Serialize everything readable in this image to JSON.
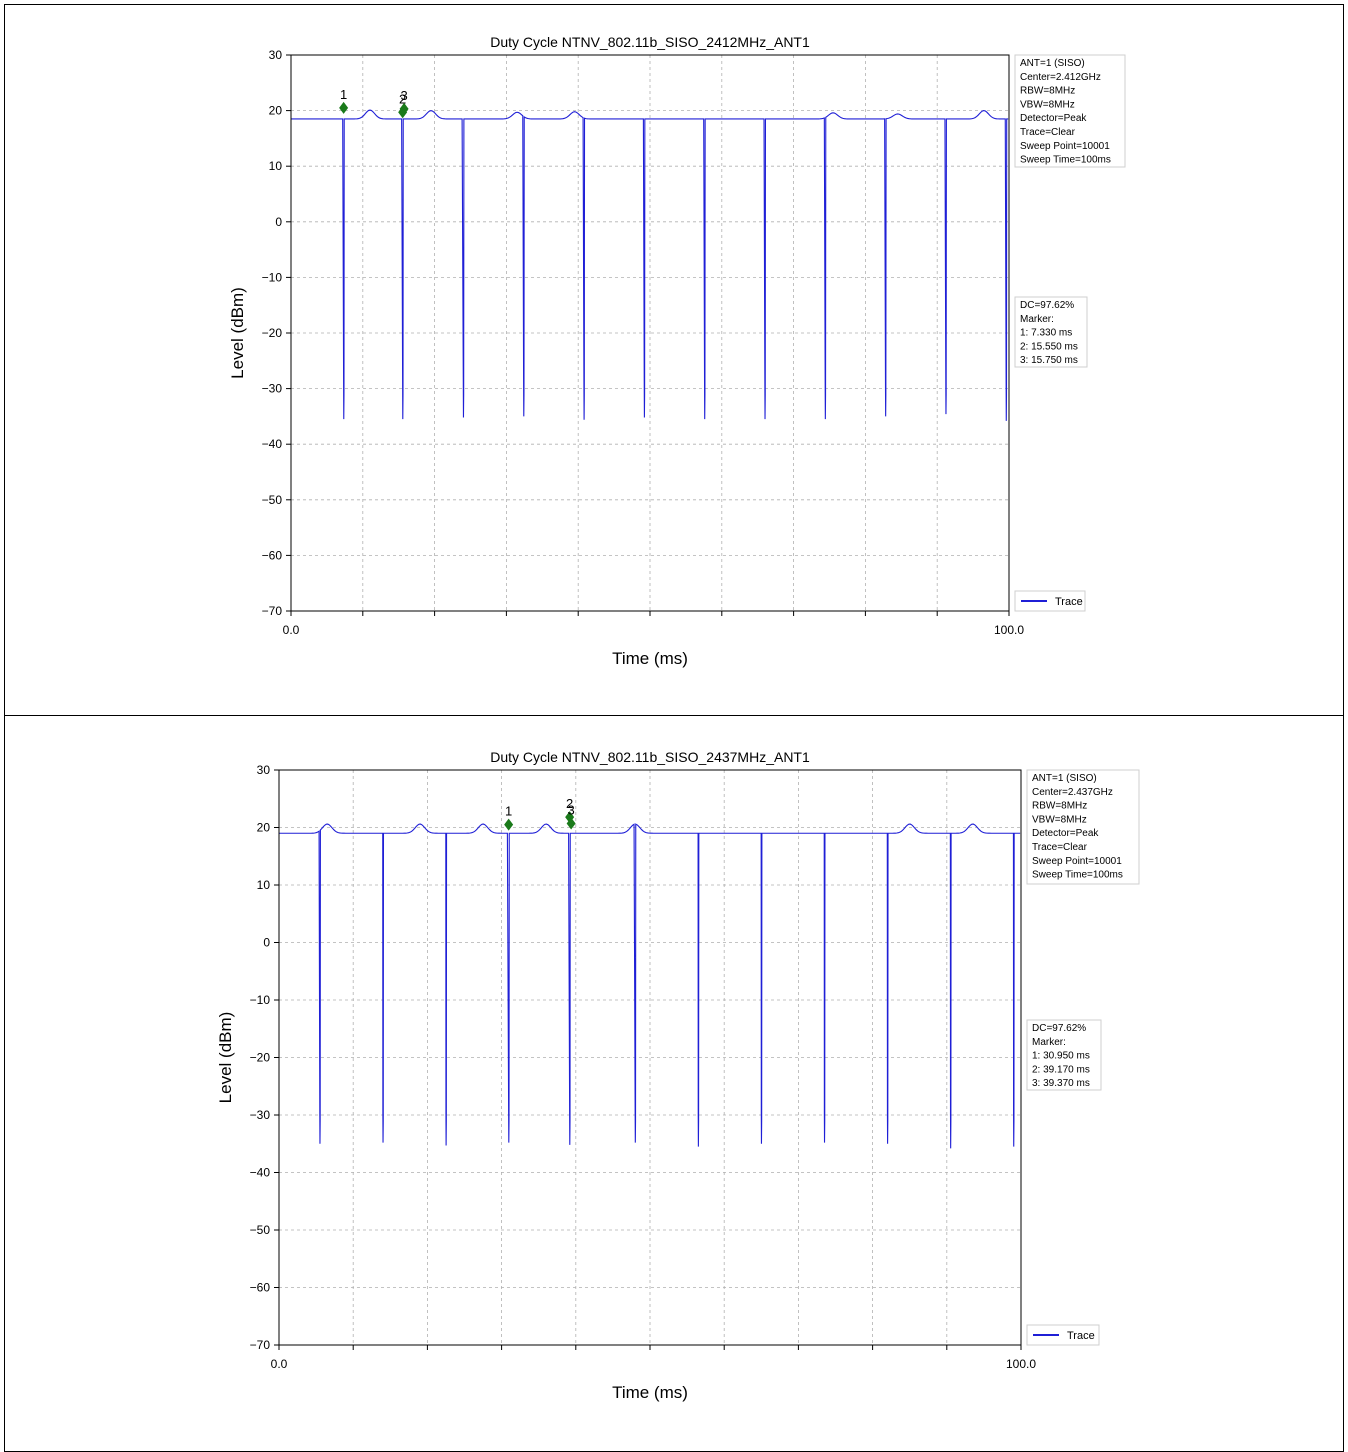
{
  "colors": {
    "trace": "#1f1fd6",
    "marker": "#1a7a1a",
    "grid": "#b0b0b0"
  },
  "chart_data": [
    {
      "type": "line",
      "title": "Duty Cycle NTNV_802.11b_SISO_2412MHz_ANT1",
      "xlabel": "Time (ms)",
      "ylabel": "Level (dBm)",
      "xlim": [
        0.0,
        100.0
      ],
      "ylim": [
        -70,
        30
      ],
      "x_tick_labels": [
        "0.0",
        "100.0"
      ],
      "y_ticks": [
        "30",
        "20",
        "10",
        "0",
        "−10",
        "−20",
        "−30",
        "−40",
        "−50",
        "−60",
        "−70"
      ],
      "grid": true,
      "info_box": [
        "ANT=1 (SISO)",
        "Center=2.412GHz",
        "RBW=8MHz",
        "VBW=8MHz",
        "Detector=Peak",
        "Trace=Clear",
        "Sweep Point=10001",
        "Sweep Time=100ms"
      ],
      "dc_box": [
        "DC=97.62%",
        "Marker:",
        "1: 7.330 ms",
        "2: 15.550 ms",
        "3: 15.750 ms"
      ],
      "legend": "Trace",
      "legend_position": "bottom-right",
      "base_level": 18.5,
      "bumps": [
        {
          "t": 11.0,
          "h": 1.6
        },
        {
          "t": 19.5,
          "h": 1.5
        },
        {
          "t": 31.5,
          "h": 1.2
        },
        {
          "t": 39.5,
          "h": 1.3
        },
        {
          "t": 75.5,
          "h": 1.1
        },
        {
          "t": 84.5,
          "h": 0.9
        },
        {
          "t": 96.5,
          "h": 1.5
        }
      ],
      "drops": [
        {
          "t": 7.33,
          "min": -35.5
        },
        {
          "t": 15.55,
          "min": -35.5
        },
        {
          "t": 24.0,
          "min": -35.2
        },
        {
          "t": 32.4,
          "min": -35.0
        },
        {
          "t": 40.8,
          "min": -35.6
        },
        {
          "t": 49.2,
          "min": -35.2
        },
        {
          "t": 57.6,
          "min": -35.5
        },
        {
          "t": 66.0,
          "min": -35.5
        },
        {
          "t": 74.4,
          "min": -35.5
        },
        {
          "t": 82.8,
          "min": -35.0
        },
        {
          "t": 91.2,
          "min": -34.6
        },
        {
          "t": 99.6,
          "min": -35.8
        }
      ],
      "markers": [
        {
          "label": "1",
          "t": 7.33,
          "level": 20.5
        },
        {
          "label": "2",
          "t": 15.55,
          "level": 19.7
        },
        {
          "label": "3",
          "t": 15.75,
          "level": 20.3
        }
      ]
    },
    {
      "type": "line",
      "title": "Duty Cycle NTNV_802.11b_SISO_2437MHz_ANT1",
      "xlabel": "Time (ms)",
      "ylabel": "Level (dBm)",
      "xlim": [
        0.0,
        100.0
      ],
      "ylim": [
        -70,
        30
      ],
      "x_tick_labels": [
        "0.0",
        "100.0"
      ],
      "y_ticks": [
        "30",
        "20",
        "10",
        "0",
        "−10",
        "−20",
        "−30",
        "−40",
        "−50",
        "−60",
        "−70"
      ],
      "grid": true,
      "info_box": [
        "ANT=1 (SISO)",
        "Center=2.437GHz",
        "RBW=8MHz",
        "VBW=8MHz",
        "Detector=Peak",
        "Trace=Clear",
        "Sweep Point=10001",
        "Sweep Time=100ms"
      ],
      "dc_box": [
        "DC=97.62%",
        "Marker:",
        "1: 30.950 ms",
        "2: 39.170 ms",
        "3: 39.370 ms"
      ],
      "legend": "Trace",
      "legend_position": "bottom-right",
      "base_level": 19.0,
      "bumps": [
        {
          "t": 6.5,
          "h": 1.6
        },
        {
          "t": 19.0,
          "h": 1.6
        },
        {
          "t": 27.5,
          "h": 1.6
        },
        {
          "t": 36.0,
          "h": 1.6
        },
        {
          "t": 48.0,
          "h": 1.6
        },
        {
          "t": 85.0,
          "h": 1.6
        },
        {
          "t": 93.5,
          "h": 1.6
        }
      ],
      "drops": [
        {
          "t": 5.5,
          "min": -35.0
        },
        {
          "t": 14.0,
          "min": -34.8
        },
        {
          "t": 22.5,
          "min": -35.3
        },
        {
          "t": 30.95,
          "min": -34.8
        },
        {
          "t": 39.17,
          "min": -35.2
        },
        {
          "t": 48.0,
          "min": -34.8
        },
        {
          "t": 56.5,
          "min": -35.5
        },
        {
          "t": 65.0,
          "min": -35.0
        },
        {
          "t": 73.5,
          "min": -34.8
        },
        {
          "t": 82.0,
          "min": -35.0
        },
        {
          "t": 90.5,
          "min": -35.8
        },
        {
          "t": 99.0,
          "min": -35.5
        }
      ],
      "markers": [
        {
          "label": "1",
          "t": 30.95,
          "level": 20.5
        },
        {
          "label": "2",
          "t": 39.17,
          "level": 21.8
        },
        {
          "label": "3",
          "t": 39.37,
          "level": 20.7
        }
      ]
    }
  ]
}
